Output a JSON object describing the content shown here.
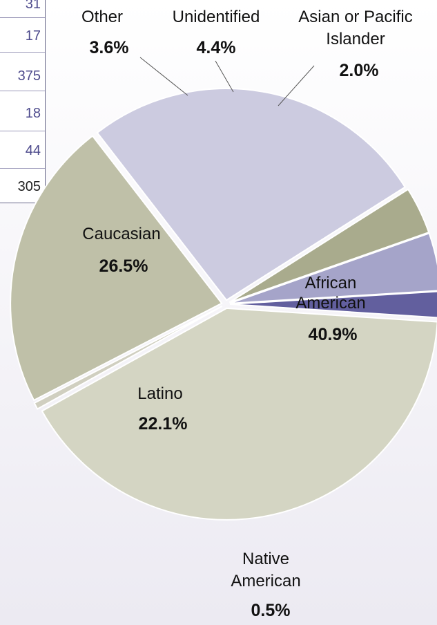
{
  "table_fragment": {
    "cells": [
      "31",
      "17",
      "375",
      "18",
      "44",
      "305"
    ]
  },
  "chart_data": {
    "type": "pie",
    "start_angle_deg": 86.5,
    "slices": [
      {
        "label": "Asian or Pacific Islander",
        "value": 2.0,
        "display": "2.0%",
        "color": "#625f9e"
      },
      {
        "label": "African American",
        "value": 40.9,
        "display": "40.9%",
        "color": "#d4d5c3"
      },
      {
        "label": "Native American",
        "value": 0.5,
        "display": "0.5%",
        "color": "#d0cfc0"
      },
      {
        "label": "Latino",
        "value": 22.1,
        "display": "22.1%",
        "color": "#bfc0a8"
      },
      {
        "label": "Caucasian",
        "value": 26.5,
        "display": "26.5%",
        "color": "#cccbe0"
      },
      {
        "label": "Other",
        "value": 3.6,
        "display": "3.6%",
        "color": "#a9ab8d"
      },
      {
        "label": "Unidentified",
        "value": 4.4,
        "display": "4.4%",
        "color": "#a5a4c9"
      }
    ]
  }
}
